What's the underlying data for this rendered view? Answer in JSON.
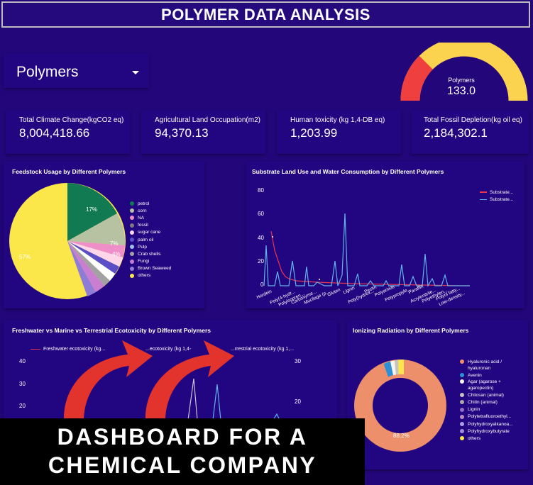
{
  "header": {
    "title": "POLYMER DATA ANALYSIS"
  },
  "filter": {
    "label": "Polymers"
  },
  "gauge": {
    "label": "Polymers",
    "value": "133.0",
    "colors": {
      "low": "#ef3f3f",
      "high": "#fcd34f",
      "track": "#ffffff"
    }
  },
  "kpis": [
    {
      "label": "Total Climate Change(kgCO2 eq)",
      "value": "8,004,418.66"
    },
    {
      "label": "Agricultural Land Occupation(m2)",
      "value": "94,370.13"
    },
    {
      "label": "Human toxicity (kg 1,4-DB eq)",
      "value": "1,203.99"
    },
    {
      "label": "Total Fossil Depletion(kg oil eq)",
      "value": "2,184,302.1"
    }
  ],
  "feedstock": {
    "title": "Feedstock Usage by Different Polymers",
    "legend": [
      "petrol",
      "corn",
      "NA",
      "fossil",
      "sugar cane",
      "palm oil",
      "Pulp",
      "Crab shells",
      "Fungi",
      "Brown Seaweed",
      "others"
    ],
    "colors": [
      "#117a52",
      "#b7c2a3",
      "#ef8fc9",
      "#7c7c7c",
      "#fdd7e9",
      "#5a4fc7",
      "#9cc0e8",
      "#a2a2a2",
      "#ca7ed1",
      "#8f7cd6",
      "#fce74a"
    ],
    "slice_labels": [
      "17%",
      "7%",
      "4%",
      "57%"
    ]
  },
  "substrate": {
    "title": "Substrate Land Use and Water Consumption by Different Polymers",
    "legend": [
      "Substrate...",
      "Substrate..."
    ],
    "colors": [
      "#e8334e",
      "#62b3ea"
    ],
    "y_ticks": [
      "80",
      "60",
      "40",
      "20",
      "0"
    ],
    "x_labels": [
      "Hordein",
      "Poly(4-hydr...",
      "Polyisopren...",
      "Carboxyme...",
      "Mucilage (p...",
      "Gluten",
      "Lignin",
      "Poly(hydrox...",
      "Pectin",
      "Polyamide",
      "Polypropyle...",
      "Paraffin",
      "Acrylonitrile...",
      "Polyethylen...",
      "Polyol fatty...",
      "Low-density..."
    ]
  },
  "ecotox": {
    "title": "Freshwater vs Marine vs Terrestrial Ecotoxicity by Different Polymers",
    "legend": [
      "Freshwater ecotoxicity (kg...",
      "...ecotoxicity (kg 1,4-",
      "...rrestrial ecotoxicity (kg 1,..."
    ],
    "colors": [
      "#e8334e",
      "#62b3ea",
      "#cbc6d6"
    ],
    "y_left": [
      "40",
      "30",
      "20"
    ],
    "y_right": [
      "30",
      "20"
    ]
  },
  "radiation": {
    "title": "Ionizing Radiation by Different Polymers",
    "legend": [
      "Hyaluronic acid / hyaluronan",
      "Avenin",
      "Agar (agarose + agaropectin)",
      "Chitosan (animal)",
      "Chitin (animal)",
      "Lignin",
      "Polytetrafluoroethyl...",
      "Polyhydroxyalkanoa...",
      "Polyhydroxybutyrate",
      "others"
    ],
    "colors": [
      "#ec8f6a",
      "#2f8fd6",
      "#f5f5f5",
      "#c4c4c4",
      "#a9a9a9",
      "#8f6fc6",
      "#b88cc8",
      "#ab9fe6",
      "#9f8be0",
      "#fce74a"
    ],
    "center_label": "88.2%"
  },
  "promo": {
    "line1": "DASHBOARD FOR A",
    "line2": "CHEMICAL COMPANY",
    "arrow_color": "#e3332d"
  }
}
